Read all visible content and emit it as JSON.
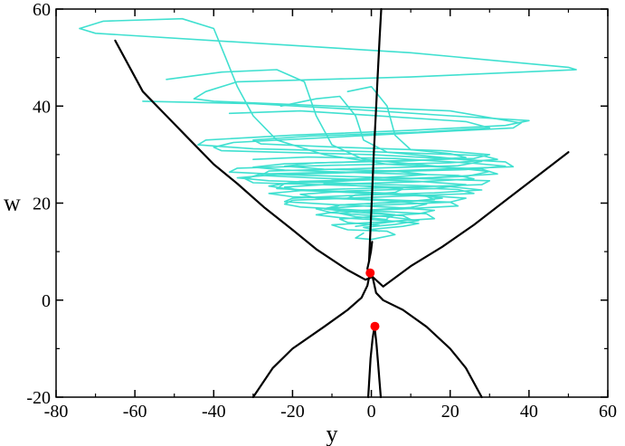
{
  "chart_data": {
    "type": "line",
    "title": "",
    "xlabel": "y",
    "ylabel": "w",
    "xlim": [
      -80,
      60
    ],
    "ylim": [
      -20,
      60
    ],
    "x_ticks": [
      -80,
      -60,
      -40,
      -20,
      0,
      20,
      40,
      60
    ],
    "y_ticks": [
      -20,
      0,
      20,
      40,
      60
    ],
    "x_tick_labels": [
      "-80",
      "-60",
      "-40",
      "-20",
      "0",
      "20",
      "40",
      "60"
    ],
    "y_tick_labels": [
      "-20",
      "0",
      "20",
      "40",
      "60"
    ],
    "grid": false,
    "legend": "none",
    "colors": {
      "trajectory": "#40e0d0",
      "manifold": "#000000",
      "equilibrium": "#ff0000"
    },
    "series": [
      {
        "kind": "line",
        "role": "trajectory",
        "points": [
          [
            -74,
            56
          ],
          [
            -70,
            55
          ],
          [
            10,
            51
          ],
          [
            50,
            48
          ],
          [
            52,
            47.5
          ],
          [
            10,
            46
          ],
          [
            -34,
            45
          ],
          [
            -42,
            43
          ],
          [
            -45,
            41.5
          ],
          [
            -40,
            41
          ],
          [
            20,
            39
          ],
          [
            38,
            36.5
          ],
          [
            36,
            35.5
          ],
          [
            0,
            34
          ],
          [
            -35,
            32.5
          ],
          [
            -40,
            31.5
          ],
          [
            -38,
            30.8
          ],
          [
            0,
            30
          ],
          [
            34,
            28.5
          ],
          [
            36,
            27.5
          ],
          [
            0,
            26.5
          ],
          [
            -28,
            26
          ],
          [
            -32,
            25
          ],
          [
            -30,
            24.2
          ],
          [
            0,
            23.5
          ],
          [
            22,
            22.8
          ],
          [
            26,
            22
          ],
          [
            0,
            21.2
          ],
          [
            -20,
            20.6
          ],
          [
            -22,
            19.8
          ],
          [
            -18,
            19.2
          ],
          [
            0,
            18.4
          ],
          [
            14,
            17.8
          ],
          [
            16,
            16.8
          ],
          [
            0,
            16
          ],
          [
            -10,
            15.5
          ],
          [
            -6,
            14.5
          ],
          [
            4,
            14.2
          ],
          [
            6,
            13.5
          ],
          [
            0,
            12.5
          ],
          [
            -4,
            12.8
          ],
          [
            -2,
            13.8
          ]
        ]
      },
      {
        "kind": "line",
        "role": "trajectory",
        "points": [
          [
            -74,
            56
          ],
          [
            -68,
            57.5
          ],
          [
            -48,
            58
          ],
          [
            -40,
            56
          ],
          [
            -37,
            50
          ],
          [
            -34,
            44
          ],
          [
            -30,
            38
          ],
          [
            -24,
            33
          ],
          [
            -12,
            30
          ],
          [
            4,
            28
          ],
          [
            28,
            27
          ],
          [
            32,
            26
          ],
          [
            10,
            25
          ],
          [
            -18,
            24.5
          ],
          [
            -26,
            23.5
          ],
          [
            -20,
            22.8
          ],
          [
            6,
            22
          ],
          [
            24,
            21
          ],
          [
            20,
            20.2
          ],
          [
            0,
            19.5
          ],
          [
            -14,
            18.8
          ],
          [
            -10,
            18
          ],
          [
            4,
            17.2
          ],
          [
            12,
            16.4
          ],
          [
            6,
            15.6
          ],
          [
            -2,
            15
          ],
          [
            2,
            14.2
          ]
        ]
      },
      {
        "kind": "line",
        "role": "trajectory",
        "points": [
          [
            -52,
            45.5
          ],
          [
            -38,
            47
          ],
          [
            -24,
            47.5
          ],
          [
            -17,
            45
          ],
          [
            -14,
            38
          ],
          [
            -10,
            32
          ],
          [
            -2,
            29
          ],
          [
            18,
            27.5
          ],
          [
            30,
            26.5
          ],
          [
            24,
            25.5
          ],
          [
            0,
            24.8
          ],
          [
            -22,
            24
          ],
          [
            -24,
            23
          ],
          [
            -10,
            22.4
          ],
          [
            10,
            21.8
          ],
          [
            18,
            21
          ],
          [
            8,
            20.2
          ],
          [
            -8,
            19.6
          ],
          [
            -12,
            18.8
          ],
          [
            -4,
            18.1
          ],
          [
            8,
            17.4
          ],
          [
            10,
            16.6
          ],
          [
            2,
            15.8
          ],
          [
            -4,
            15.2
          ]
        ]
      },
      {
        "kind": "line",
        "role": "trajectory",
        "points": [
          [
            -58,
            41
          ],
          [
            -30,
            40.5
          ],
          [
            -8,
            39.5
          ],
          [
            20,
            38
          ],
          [
            40,
            37
          ],
          [
            34,
            36
          ],
          [
            10,
            35
          ],
          [
            -20,
            34
          ],
          [
            -42,
            33
          ],
          [
            -44,
            32
          ],
          [
            -30,
            31.2
          ],
          [
            0,
            30.6
          ],
          [
            28,
            29.8
          ],
          [
            32,
            29
          ],
          [
            20,
            28.3
          ],
          [
            -10,
            27.8
          ],
          [
            -34,
            27.2
          ],
          [
            -36,
            26.4
          ],
          [
            -20,
            25.8
          ],
          [
            6,
            25.2
          ],
          [
            30,
            24.6
          ],
          [
            28,
            23.8
          ],
          [
            6,
            23.2
          ],
          [
            -16,
            22.7
          ],
          [
            -26,
            22
          ],
          [
            -20,
            21.3
          ],
          [
            0,
            20.8
          ],
          [
            20,
            20.2
          ],
          [
            22,
            19.4
          ],
          [
            8,
            18.8
          ],
          [
            -8,
            18.3
          ],
          [
            -14,
            17.6
          ],
          [
            -8,
            17
          ],
          [
            4,
            16.4
          ],
          [
            12,
            15.8
          ],
          [
            8,
            15.2
          ],
          [
            0,
            14.6
          ]
        ]
      },
      {
        "kind": "line",
        "role": "trajectory",
        "points": [
          [
            -36,
            38.5
          ],
          [
            -18,
            39
          ],
          [
            -4,
            38.3
          ],
          [
            24,
            36.8
          ],
          [
            30,
            35.5
          ],
          [
            12,
            34.6
          ],
          [
            -16,
            33.8
          ],
          [
            -30,
            33
          ],
          [
            -28,
            32.2
          ],
          [
            -8,
            31.5
          ],
          [
            18,
            30.8
          ],
          [
            30,
            30
          ],
          [
            26,
            29.2
          ],
          [
            0,
            28.6
          ],
          [
            -22,
            28.1
          ],
          [
            -30,
            27.4
          ],
          [
            -22,
            26.8
          ],
          [
            0,
            26.2
          ],
          [
            22,
            25.7
          ],
          [
            26,
            25
          ],
          [
            12,
            24.4
          ],
          [
            -10,
            23.9
          ],
          [
            -22,
            23.3
          ],
          [
            -18,
            22.6
          ],
          [
            0,
            22
          ],
          [
            14,
            21.4
          ],
          [
            16,
            20.7
          ],
          [
            4,
            20.1
          ],
          [
            -8,
            19.6
          ],
          [
            -10,
            18.9
          ],
          [
            -2,
            18.3
          ],
          [
            6,
            17.6
          ],
          [
            4,
            16.9
          ]
        ]
      },
      {
        "kind": "line",
        "role": "trajectory",
        "points": [
          [
            -23,
            40
          ],
          [
            -14,
            41.5
          ],
          [
            -8,
            42
          ],
          [
            -4,
            38
          ],
          [
            -2,
            33
          ],
          [
            4,
            30.5
          ],
          [
            18,
            29.4
          ],
          [
            28,
            28.6
          ],
          [
            22,
            27.7
          ],
          [
            -4,
            27.1
          ],
          [
            -26,
            26.6
          ],
          [
            -28,
            25.7
          ],
          [
            -12,
            25.1
          ],
          [
            12,
            24.5
          ],
          [
            24,
            23.8
          ],
          [
            16,
            23
          ],
          [
            -6,
            22.5
          ],
          [
            -18,
            21.8
          ],
          [
            -14,
            21.1
          ],
          [
            4,
            20.5
          ],
          [
            14,
            19.8
          ],
          [
            10,
            19.1
          ],
          [
            -2,
            18.5
          ],
          [
            -8,
            17.9
          ],
          [
            -4,
            17.2
          ],
          [
            4,
            16.6
          ]
        ]
      },
      {
        "kind": "line",
        "role": "trajectory",
        "points": [
          [
            -30,
            29
          ],
          [
            -16,
            29.5
          ],
          [
            6,
            29.2
          ],
          [
            26,
            28.2
          ],
          [
            34,
            27.6
          ],
          [
            24,
            26.9
          ],
          [
            0,
            26.4
          ],
          [
            -24,
            25.9
          ],
          [
            -34,
            25.2
          ],
          [
            -26,
            24.6
          ],
          [
            -4,
            24
          ],
          [
            20,
            23.4
          ],
          [
            28,
            22.7
          ],
          [
            16,
            22.1
          ],
          [
            -4,
            21.6
          ],
          [
            -20,
            21
          ],
          [
            -22,
            20.3
          ],
          [
            -10,
            19.7
          ],
          [
            6,
            19.1
          ],
          [
            16,
            18.5
          ],
          [
            12,
            17.8
          ],
          [
            0,
            17.2
          ],
          [
            -8,
            16.7
          ],
          [
            -6,
            16
          ],
          [
            2,
            15.4
          ]
        ]
      },
      {
        "kind": "line",
        "role": "trajectory",
        "points": [
          [
            -6,
            43
          ],
          [
            0,
            44
          ],
          [
            4,
            40
          ],
          [
            6,
            34
          ],
          [
            10,
            31
          ],
          [
            20,
            30.2
          ],
          [
            24,
            29.4
          ],
          [
            10,
            28.7
          ],
          [
            -14,
            28.3
          ],
          [
            -22,
            27.6
          ],
          [
            -12,
            27
          ],
          [
            6,
            26.6
          ],
          [
            14,
            25.9
          ],
          [
            4,
            25.3
          ],
          [
            -10,
            24.7
          ],
          [
            -12,
            24
          ],
          [
            -2,
            23.5
          ],
          [
            8,
            22.9
          ],
          [
            6,
            22.2
          ],
          [
            -4,
            21.7
          ],
          [
            -6,
            21
          ]
        ]
      },
      {
        "kind": "line",
        "role": "manifold",
        "points": [
          [
            -0.6,
            8
          ],
          [
            -0.2,
            15
          ],
          [
            0.2,
            22
          ],
          [
            0.6,
            30
          ],
          [
            1.1,
            38
          ],
          [
            1.6,
            46
          ],
          [
            2.1,
            54
          ],
          [
            2.5,
            60
          ]
        ]
      },
      {
        "kind": "line",
        "role": "manifold",
        "points": [
          [
            0.2,
            12
          ],
          [
            -0.1,
            10
          ],
          [
            -0.6,
            8
          ],
          [
            -1,
            6.5
          ],
          [
            -0.4,
            5.4
          ],
          [
            0.3,
            4.8
          ],
          [
            -1.5,
            4.2
          ],
          [
            -6,
            6.2
          ],
          [
            -14,
            10.5
          ],
          [
            -20,
            14.5
          ]
        ]
      },
      {
        "kind": "line",
        "role": "manifold",
        "points": [
          [
            -20,
            14.5
          ],
          [
            -27,
            19
          ],
          [
            -34,
            24
          ],
          [
            -40,
            28
          ],
          [
            -46,
            33
          ],
          [
            -52,
            38
          ],
          [
            -58,
            43
          ],
          [
            -65,
            53.5
          ]
        ]
      },
      {
        "kind": "line",
        "role": "manifold",
        "points": [
          [
            -0.4,
            5.4
          ],
          [
            -1,
            3
          ],
          [
            -2.5,
            0.5
          ],
          [
            -6,
            -2
          ],
          [
            -12,
            -5.5
          ],
          [
            -20,
            -10
          ],
          [
            -25,
            -14
          ],
          [
            -30,
            -20
          ]
        ]
      },
      {
        "kind": "line",
        "role": "manifold",
        "points": [
          [
            0.3,
            4.8
          ],
          [
            1.2,
            1.5
          ],
          [
            3,
            0
          ],
          [
            8,
            -2
          ],
          [
            14,
            -5.5
          ],
          [
            20,
            -10
          ],
          [
            24,
            -14
          ],
          [
            28,
            -20
          ]
        ]
      },
      {
        "kind": "line",
        "role": "manifold",
        "points": [
          [
            0.3,
            4.8
          ],
          [
            3,
            2.8
          ],
          [
            10,
            7
          ],
          [
            18,
            11
          ],
          [
            26,
            15.5
          ],
          [
            34,
            20.5
          ],
          [
            42,
            25.5
          ],
          [
            50,
            30.5
          ]
        ]
      },
      {
        "kind": "line",
        "role": "manifold",
        "points": [
          [
            0.8,
            -5.4
          ],
          [
            0.3,
            -8
          ],
          [
            -0.2,
            -12
          ],
          [
            -0.5,
            -16
          ],
          [
            -0.8,
            -20
          ]
        ]
      },
      {
        "kind": "line",
        "role": "manifold",
        "points": [
          [
            0.8,
            -5.4
          ],
          [
            1.3,
            -9
          ],
          [
            1.7,
            -13
          ],
          [
            2.1,
            -17
          ],
          [
            2.4,
            -20
          ]
        ]
      },
      {
        "kind": "points",
        "role": "equilibrium",
        "points": [
          [
            -0.3,
            5.6
          ],
          [
            0.9,
            -5.4
          ]
        ]
      }
    ]
  }
}
